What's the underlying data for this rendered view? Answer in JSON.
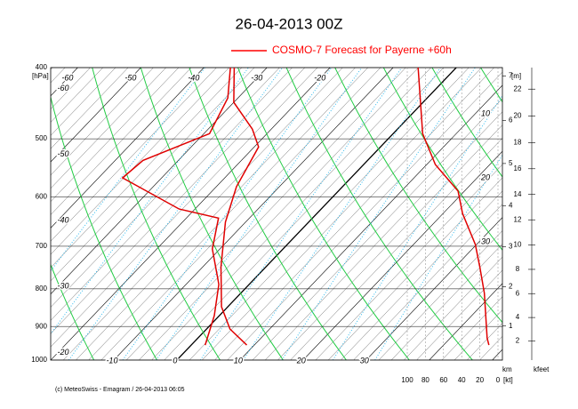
{
  "chart_data": {
    "type": "emagram",
    "title": "26-04-2013  00Z",
    "legend_label": "COSMO-7 Forecast for Payerne   +60h",
    "legend_color": "#ff0000",
    "y_unit": "[hPa]",
    "log_y": true,
    "ylim": [
      1000,
      400
    ],
    "yticks": [
      400,
      500,
      600,
      700,
      800,
      900,
      1000
    ],
    "xlim": [
      -20,
      51.6
    ],
    "xticks": [
      -10,
      0,
      10,
      20,
      30
    ],
    "top_isotherm_labels": [
      -60,
      -50,
      -40,
      -30,
      -20
    ],
    "left_isotherm_labels": [
      -60,
      -50,
      -40,
      -30,
      -20
    ],
    "theta_labels": [
      10,
      20,
      30
    ],
    "series": [
      {
        "name": "temperature",
        "color": "#e00000",
        "pressure": [
          954,
          907,
          846,
          747,
          649,
          581,
          513,
          485,
          446,
          400
        ],
        "values": [
          8.8,
          3.7,
          -1.0,
          -7.1,
          -13.2,
          -16.8,
          -19.3,
          -23,
          -30,
          -35.2
        ]
      },
      {
        "name": "dewpoint",
        "color": "#e00000",
        "pressure": [
          954,
          870,
          789,
          706,
          641,
          623,
          565,
          535,
          492,
          440,
          400
        ],
        "values": [
          2.2,
          -0.8,
          -4.8,
          -11.2,
          -14.9,
          -22.5,
          -36.2,
          -35.6,
          -29.1,
          -31.6,
          -35.8
        ]
      },
      {
        "name": "wind speed",
        "color": "#e00000",
        "pressure": [
          400,
          492,
          542,
          589,
          632,
          696,
          747,
          811,
          933,
          954
        ],
        "values": [
          88,
          83,
          69,
          44,
          39,
          25,
          20,
          15,
          12,
          10
        ]
      }
    ],
    "km_unit": "[m]",
    "km_ticks": [
      1,
      2,
      3,
      4,
      5,
      6,
      7
    ],
    "km_label": "km",
    "kfeet_ticks": [
      2,
      4,
      6,
      8,
      10,
      12,
      14,
      16,
      18,
      20,
      22
    ],
    "kfeet_label": "kfeet",
    "wind_unit": "[kt]",
    "wind_lim": [
      100,
      0
    ],
    "wind_ticks": [
      100,
      80,
      60,
      40,
      20,
      0
    ],
    "footer": "(c) MeteoSwiss - Emagram  /  26-04-2013 06:05"
  }
}
